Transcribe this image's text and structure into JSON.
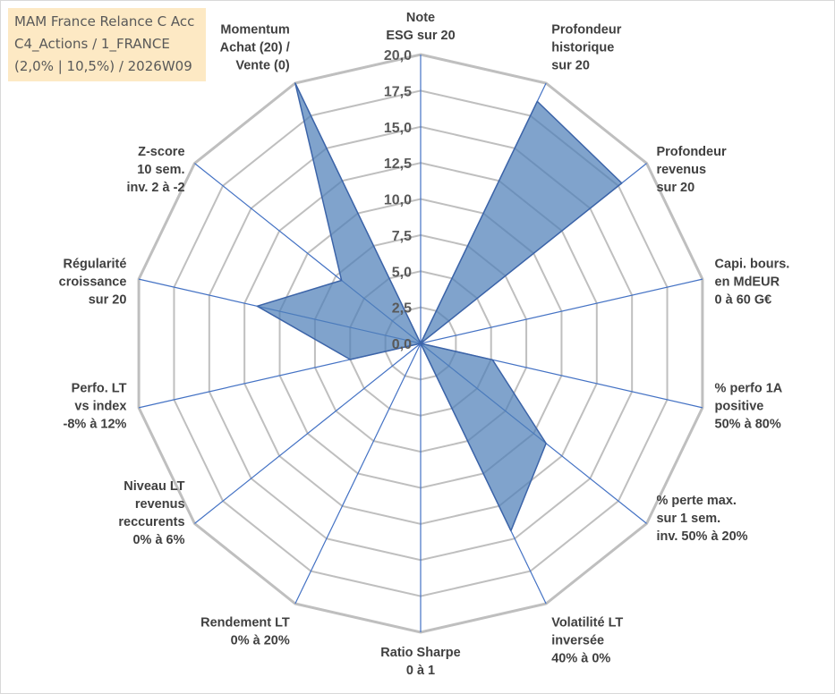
{
  "title": {
    "line1": "MAM France Relance C Acc",
    "line2": "C4_Actions / 1_FRANCE",
    "line3": "(2,0% | 10,5%) / 2026W09"
  },
  "colors": {
    "fill": "#4f7fb8",
    "fill_opacity": "0.72",
    "stroke": "#3c64a8",
    "grid": "#bfbfbf",
    "spoke": "#4472c4"
  },
  "chart_data": {
    "type": "radar",
    "title": "MAM France Relance C Acc",
    "rmax": 20,
    "tick_step": 2.5,
    "tick_labels": [
      "0,0",
      "2,5",
      "5,0",
      "7,5",
      "10,0",
      "12,5",
      "15,0",
      "17,5",
      "20,0"
    ],
    "categories": [
      {
        "lines": [
          "Note",
          "ESG sur 20"
        ],
        "value": 0
      },
      {
        "lines": [
          "Profondeur",
          "historique",
          "sur 20"
        ],
        "value": 18.6
      },
      {
        "lines": [
          "Profondeur",
          "revenus",
          "sur 20"
        ],
        "value": 17.8
      },
      {
        "lines": [
          "Capi. bours.",
          "en MdEUR",
          "0 à 60 G€"
        ],
        "value": 0
      },
      {
        "lines": [
          "% perfo 1A",
          "positive",
          "50% à 80%"
        ],
        "value": 5.1
      },
      {
        "lines": [
          "% perte max.",
          "sur 1 sem.",
          "inv. 50% à 20%"
        ],
        "value": 11.1
      },
      {
        "lines": [
          "Volatilité LT",
          "inversée",
          "40% à 0%"
        ],
        "value": 14.4
      },
      {
        "lines": [
          "Ratio Sharpe",
          "0 à 1"
        ],
        "value": 0
      },
      {
        "lines": [
          "Rendement LT",
          "0% à 20%"
        ],
        "value": 0
      },
      {
        "lines": [
          "Niveau LT",
          "revenus",
          "reccurents",
          "0% à 6%"
        ],
        "value": 0
      },
      {
        "lines": [
          "Perfo. LT",
          "vs index",
          "-8% à 12%"
        ],
        "value": 5.0
      },
      {
        "lines": [
          "Régularité",
          "croissance",
          "sur 20"
        ],
        "value": 11.6
      },
      {
        "lines": [
          "Z-score",
          "10 sem.",
          "inv. 2 à -2"
        ],
        "value": 7.0
      },
      {
        "lines": [
          "Momentum",
          "Achat (20) /",
          "Vente (0)"
        ],
        "value": 20
      }
    ]
  }
}
